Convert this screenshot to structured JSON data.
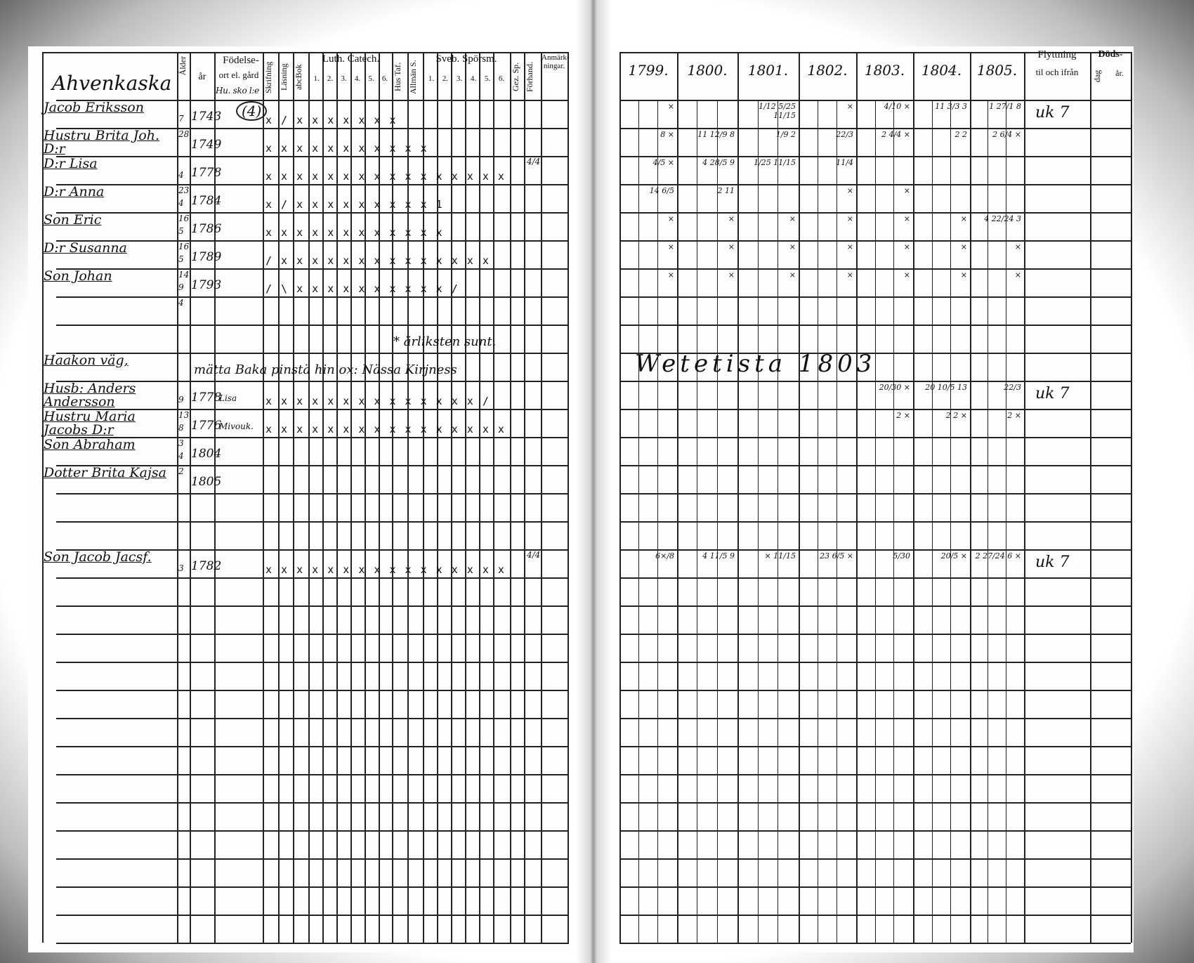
{
  "left_page": {
    "header": {
      "birth_group": "Födelse-",
      "age_col": "Ålder",
      "year_col": "år",
      "place_col": "ort el. gård",
      "place_value": "Hu. sko l:e",
      "skrifning": "Skrifning",
      "lasning": "Läsning",
      "abcbok": "abcBok",
      "luth_catech": "Luth. Catech.",
      "luth_cols": [
        "1.",
        "2.",
        "3.",
        "4.",
        "5.",
        "6."
      ],
      "hus_tafla": "Hus Taf.",
      "allman_s": "Allmän S.",
      "sveb_sporsm": "Sveb. Spörsm.",
      "sveb_cols": [
        "1.",
        "2.",
        "3.",
        "4.",
        "5.",
        "6."
      ],
      "gez_sp": "Gez. Sp.",
      "forhand": "Förhand.",
      "anmarkningar": "Anmärk-ningar."
    },
    "farm_name": "Ahvenkaska",
    "farm_number": "(4)",
    "rows": [
      {
        "name": "Jacob Eriksson",
        "age": "7",
        "year": "1743",
        "marks": "x / x x x x x x x"
      },
      {
        "name": "Hustru Brita Joh. D:r",
        "age_note": "28",
        "year": "1749",
        "marks": "x x x x x x x x x x x"
      },
      {
        "name": "D:r Lisa",
        "age": "4",
        "year": "1778",
        "marks": "x x x x x x x x x x x x x x x x",
        "extra": "4/4"
      },
      {
        "name": "D:r Anna",
        "age_note": "23",
        "age": "4",
        "year": "1784",
        "marks": "x / x x x x x x x x x 1"
      },
      {
        "name": "Son Eric",
        "age_note": "16",
        "age": "5",
        "year": "1786",
        "marks": "x x x x x x x x x x x x"
      },
      {
        "name": "D:r Susanna",
        "age_note": "16",
        "age": "5",
        "year": "1789",
        "marks": "/ x x x x x x x x x x x x x x"
      },
      {
        "name": "Son Johan",
        "age_note": "14",
        "age": "9",
        "year": "1793",
        "marks": "/ \\ x x x x x x x x x x /"
      },
      {
        "age_note": "4"
      },
      {
        "note": "* ärliksten sunt."
      },
      {
        "name": "Haakon väg,",
        "note": "mätta Baka pinstä hin ox: Nässa Kirjness"
      },
      {
        "name": "Husb: Anders Andersson",
        "age": "9",
        "year": "1778",
        "place": "Lisa",
        "marks": "x x x x x x x x x x x x x x /"
      },
      {
        "name": "Hustru Maria Jacobs D:r",
        "age_note": "13",
        "age": "8",
        "year": "1776",
        "place": "Mivouk.",
        "marks": "x x x x x x x x x x x x x x x x"
      },
      {
        "name": "Son Abraham",
        "age_note": "3",
        "age": "4",
        "year": "1804"
      },
      {
        "name": "Dotter Brita Kajsa",
        "age_note": "2",
        "year": "1805"
      },
      {},
      {},
      {
        "name": "Son Jacob Jacsf.",
        "age": "3",
        "year": "1782",
        "marks": "x x x x x x x x x x x x x x x x",
        "extra": "4/4"
      }
    ]
  },
  "right_page": {
    "years": [
      "1799.",
      "1800.",
      "1801.",
      "1802.",
      "1803.",
      "1804.",
      "1805."
    ],
    "flyttning": "Flyttning",
    "flyttning_sub": "til och ifrån",
    "dods": "Döds-",
    "dods_dag": "dag",
    "dods_ar": "år.",
    "note": "Wetetista 1803",
    "rows": [
      {
        "cells": [
          "×",
          "",
          "1/12 5/25 11/15",
          "×",
          "4/10 ×",
          "11 3/3 3",
          "1 27/1 8"
        ],
        "flyttning": "uk 7"
      },
      {
        "cells": [
          "8 ×",
          "11 12/9 8",
          "1/9 2",
          "22/3",
          "2 4/4 ×",
          "2 2",
          "2 6/4 ×"
        ]
      },
      {
        "cells": [
          "4/5 ×",
          "4 28/5 9",
          "1/25 11/15",
          "11/4",
          "",
          "",
          ""
        ]
      },
      {
        "cells": [
          "14 6/5",
          "2 11",
          "",
          "×",
          "×",
          "",
          ""
        ]
      },
      {
        "cells": [
          "×",
          "×",
          "×",
          "×",
          "×",
          "×",
          "4 22/24 3"
        ]
      },
      {
        "cells": [
          "×",
          "×",
          "×",
          "×",
          "×",
          "×",
          "×"
        ]
      },
      {
        "cells": [
          "×",
          "×",
          "×",
          "×",
          "×",
          "×",
          "×"
        ]
      },
      {},
      {},
      {},
      {
        "cells": [
          "",
          "",
          "",
          "",
          "20/30 ×",
          "20 10/5 13",
          "22/3"
        ],
        "flyttning": "uk 7"
      },
      {
        "cells": [
          "",
          "",
          "",
          "",
          "2 ×",
          "2 2 ×",
          "2 ×"
        ]
      },
      {},
      {},
      {},
      {},
      {
        "cells": [
          "6×/8",
          "4 11/5 9",
          "×  11/15",
          "23 6/5 ×",
          "5/30",
          "20/5 ×",
          "2 27/24 6 ×"
        ],
        "flyttning": "uk 7"
      }
    ]
  }
}
